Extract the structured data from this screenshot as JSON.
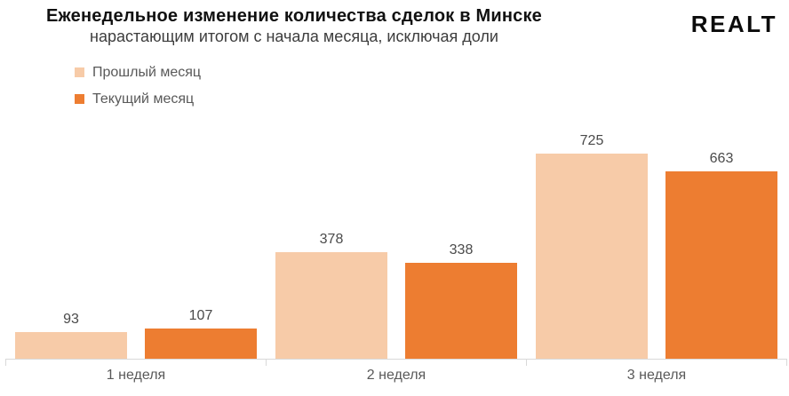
{
  "logo": {
    "text": "Realt"
  },
  "colors": {
    "prev_month": "#F7CBA8",
    "current_month": "#ED7D31",
    "axis": "#D9D9D9",
    "axis_label": "#595959",
    "value_label": "#4A4A4A",
    "title": "#111111",
    "subtitle": "#3D3D3D"
  },
  "chart_data": {
    "type": "bar",
    "title": "Еженедельное изменение количества сделок в Минске",
    "subtitle": "нарастающим итогом с начала месяца, исключая доли",
    "categories": [
      "1 неделя",
      "2 неделя",
      "3 неделя"
    ],
    "series": [
      {
        "name": "Прошлый месяц",
        "color": "#F7CBA8",
        "values": [
          93,
          378,
          725
        ]
      },
      {
        "name": "Текущий месяц",
        "color": "#ED7D31",
        "values": [
          107,
          338,
          663
        ]
      }
    ],
    "xlabel": "",
    "ylabel": "",
    "ylim": [
      0,
      750
    ],
    "grid": false,
    "y_axis_visible": false,
    "data_labels": true,
    "legend_position": "top-left"
  }
}
